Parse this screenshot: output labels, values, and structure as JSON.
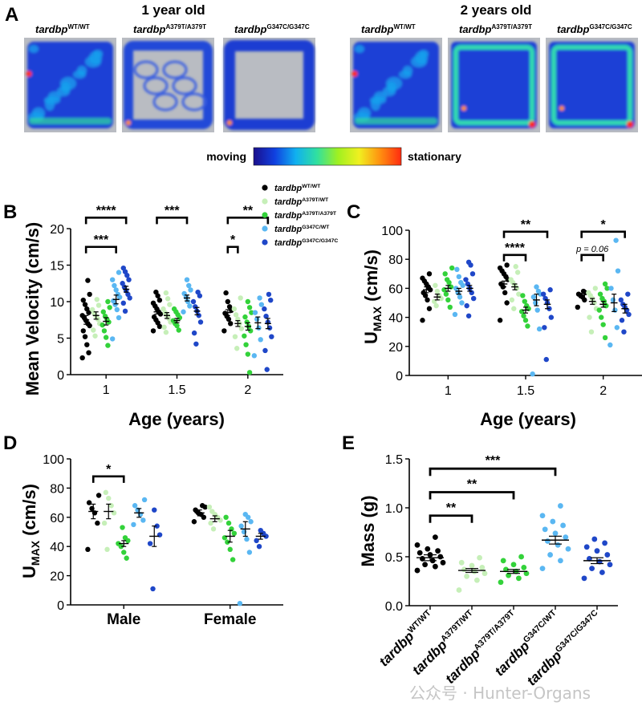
{
  "watermark": "公众号 · Hunter-Organs",
  "panel_A": {
    "panel_label": "A",
    "group_1_title": "1 year old",
    "group_2_title": "2 years old",
    "heatmaps": [
      {
        "genotype_base": "tardbp",
        "genotype_sup": "WT/WT",
        "pattern": "full"
      },
      {
        "genotype_base": "tardbp",
        "genotype_sup": "A379T/A379T",
        "pattern": "sparse"
      },
      {
        "genotype_base": "tardbp",
        "genotype_sup": "G347C/G347C",
        "pattern": "edge"
      },
      {
        "genotype_base": "tardbp",
        "genotype_sup": "WT/WT",
        "pattern": "full"
      },
      {
        "genotype_base": "tardbp",
        "genotype_sup": "A379T/A379T",
        "pattern": "edge-hot"
      },
      {
        "genotype_base": "tardbp",
        "genotype_sup": "G347C/G347C",
        "pattern": "edge-hot"
      }
    ],
    "colorbar": {
      "left_label": "moving",
      "right_label": "stationary",
      "colors": [
        "#1a0f8c",
        "#1040e0",
        "#10b0f0",
        "#30e0a0",
        "#a0f020",
        "#f0f020",
        "#ff9010",
        "#ff2a10"
      ]
    }
  },
  "legend": {
    "entries": [
      {
        "base": "tardbp",
        "sup": "WT/WT",
        "color": "#000000"
      },
      {
        "base": "tardbp",
        "sup": "A379T/WT",
        "color": "#c6efb8"
      },
      {
        "base": "tardbp",
        "sup": "A379T/A379T",
        "color": "#33d23a"
      },
      {
        "base": "tardbp",
        "sup": "G347C/WT",
        "color": "#5ab7f2"
      },
      {
        "base": "tardbp",
        "sup": "G347C/G347C",
        "color": "#1f47c8"
      }
    ]
  },
  "chart_data": [
    {
      "panel": "B",
      "type": "scatter",
      "ylabel": "Mean Velocity (cm/s)",
      "xlabel": "Age (years)",
      "ylim": [
        0,
        20
      ],
      "yticks": [
        0,
        5,
        10,
        15,
        20
      ],
      "categories": [
        "1",
        "1.5",
        "2"
      ],
      "series_colors": [
        "#000000",
        "#c6efb8",
        "#33d23a",
        "#5ab7f2",
        "#1f47c8"
      ],
      "groups": [
        {
          "category": "1",
          "series": [
            {
              "mean": 7.5,
              "sem": 0.6,
              "values": [
                2.3,
                3.0,
                4.1,
                5.2,
                6.0,
                6.7,
                7.0,
                7.4,
                7.8,
                8.1,
                8.5,
                9.0,
                9.6,
                10.2,
                11.0,
                12.9
              ]
            },
            {
              "mean": 8.1,
              "sem": 0.5,
              "values": [
                5.3,
                6.1,
                7.0,
                7.6,
                8.0,
                8.4,
                8.9,
                9.5,
                10.3
              ]
            },
            {
              "mean": 7.3,
              "sem": 0.5,
              "values": [
                4.0,
                5.1,
                6.0,
                6.8,
                7.2,
                7.6,
                8.0,
                8.6,
                9.2,
                10.0
              ]
            },
            {
              "mean": 10.3,
              "sem": 0.6,
              "values": [
                4.9,
                7.8,
                8.9,
                9.6,
                10.1,
                10.6,
                11.0,
                11.6,
                12.2,
                13.0,
                14.0
              ]
            },
            {
              "mean": 11.7,
              "sem": 0.4,
              "values": [
                8.7,
                9.8,
                10.5,
                11.0,
                11.5,
                12.0,
                12.5,
                13.0,
                13.6,
                14.1,
                14.6
              ]
            }
          ]
        },
        {
          "category": "1.5",
          "series": [
            {
              "mean": 8.6,
              "sem": 0.3,
              "values": [
                6.0,
                6.6,
                7.1,
                7.5,
                7.9,
                8.3,
                8.6,
                9.0,
                9.4,
                9.8,
                10.2,
                10.8,
                11.3
              ]
            },
            {
              "mean": 8.1,
              "sem": 0.4,
              "values": [
                5.8,
                6.5,
                7.2,
                7.7,
                8.1,
                8.5,
                9.0,
                9.6,
                10.4,
                11.2
              ]
            },
            {
              "mean": 7.4,
              "sem": 0.3,
              "values": [
                6.1,
                6.7,
                7.0,
                7.4,
                7.8,
                8.2,
                8.6,
                9.0
              ]
            },
            {
              "mean": 10.5,
              "sem": 0.4,
              "values": [
                8.6,
                9.4,
                10.0,
                10.6,
                11.1,
                11.6,
                12.2,
                13.0
              ]
            },
            {
              "mean": 8.7,
              "sem": 0.5,
              "values": [
                4.2,
                5.7,
                7.2,
                8.1,
                8.7,
                9.3,
                10.0,
                10.8,
                11.3
              ]
            }
          ]
        },
        {
          "category": "2",
          "series": [
            {
              "mean": 8.5,
              "sem": 0.4,
              "values": [
                6.0,
                7.0,
                7.6,
                8.0,
                8.4,
                8.8,
                9.3,
                10.0,
                11.2
              ]
            },
            {
              "mean": 7.0,
              "sem": 0.4,
              "values": [
                3.6,
                5.2,
                6.3,
                7.0,
                7.6,
                8.2,
                9.0,
                10.5
              ]
            },
            {
              "mean": 6.6,
              "sem": 0.5,
              "values": [
                0.3,
                2.8,
                4.1,
                5.3,
                6.0,
                6.6,
                7.2,
                7.9,
                8.5,
                9.2,
                10.0
              ]
            },
            {
              "mean": 7.1,
              "sem": 0.8,
              "values": [
                2.6,
                4.8,
                6.4,
                7.6,
                8.5,
                9.6,
                10.5
              ]
            },
            {
              "mean": 7.0,
              "sem": 0.7,
              "values": [
                0.7,
                3.3,
                5.2,
                6.4,
                7.2,
                8.0,
                9.0,
                10.2,
                11.0
              ]
            }
          ]
        }
      ],
      "annotations": [
        {
          "category": "1",
          "from": 0,
          "to": 4,
          "level": 21.5,
          "label": "****"
        },
        {
          "category": "1",
          "from": 0,
          "to": 3,
          "level": 17.5,
          "label": "***"
        },
        {
          "category": "1.5",
          "from": 0,
          "to": 3,
          "level": 21.5,
          "label": "***"
        },
        {
          "category": "2",
          "from": 0,
          "to": 4,
          "level": 21.5,
          "label": "**"
        },
        {
          "category": "2",
          "from": 0,
          "to": 1,
          "level": 17.5,
          "label": "*"
        }
      ]
    },
    {
      "panel": "C",
      "type": "scatter",
      "ylabel_main": "U",
      "ylabel_sub": "MAX",
      "ylabel_rest": " (cm/s)",
      "xlabel": "Age (years)",
      "ylim": [
        0,
        100
      ],
      "yticks": [
        0,
        20,
        40,
        60,
        80,
        100
      ],
      "categories": [
        "1",
        "1.5",
        "2"
      ],
      "series_colors": [
        "#000000",
        "#c6efb8",
        "#33d23a",
        "#5ab7f2",
        "#1f47c8"
      ],
      "groups": [
        {
          "category": "1",
          "series": [
            {
              "mean": 59,
              "sem": 2.0,
              "values": [
                38,
                46,
                52,
                55,
                57,
                59,
                61,
                63,
                65,
                67,
                70
              ]
            },
            {
              "mean": 54,
              "sem": 2.0,
              "values": [
                48,
                51,
                53,
                55,
                58,
                62
              ]
            },
            {
              "mean": 60,
              "sem": 2.0,
              "values": [
                47,
                52,
                56,
                59,
                61,
                64,
                66,
                70,
                74
              ]
            },
            {
              "mean": 58,
              "sem": 2.0,
              "values": [
                42,
                50,
                54,
                57,
                60,
                62,
                64,
                68,
                73
              ]
            },
            {
              "mean": 60,
              "sem": 2.0,
              "values": [
                41,
                48,
                53,
                57,
                60,
                63,
                66,
                70,
                76,
                78
              ]
            }
          ]
        },
        {
          "category": "1.5",
          "series": [
            {
              "mean": 63,
              "sem": 2.0,
              "values": [
                38,
                50,
                57,
                61,
                63,
                66,
                68,
                70,
                72,
                74,
                76
              ]
            },
            {
              "mean": 61,
              "sem": 2.0,
              "values": [
                46,
                52,
                56,
                60,
                62,
                64,
                66,
                71,
                75
              ]
            },
            {
              "mean": 45,
              "sem": 2.0,
              "values": [
                34,
                38,
                41,
                44,
                46,
                48,
                51,
                55
              ]
            },
            {
              "mean": 52,
              "sem": 4.0,
              "values": [
                1,
                32,
                45,
                50,
                54,
                56,
                58,
                61
              ]
            },
            {
              "mean": 49,
              "sem": 3.0,
              "values": [
                11,
                33,
                40,
                46,
                50,
                53,
                56,
                59
              ]
            }
          ]
        },
        {
          "category": "2",
          "series": [
            {
              "mean": 55,
              "sem": 1.5,
              "values": [
                47,
                52,
                54,
                55,
                56,
                57,
                58
              ]
            },
            {
              "mean": 51,
              "sem": 2.0,
              "values": [
                30,
                40,
                46,
                50,
                53,
                55,
                57,
                60
              ]
            },
            {
              "mean": 49,
              "sem": 2.0,
              "values": [
                26,
                35,
                40,
                45,
                48,
                51,
                53,
                56,
                60,
                63
              ]
            },
            {
              "mean": 50,
              "sem": 6.0,
              "values": [
                21,
                33,
                45,
                52,
                60,
                72,
                93
              ]
            },
            {
              "mean": 46,
              "sem": 3.0,
              "values": [
                30,
                38,
                42,
                45,
                47,
                49,
                52,
                56
              ]
            }
          ]
        }
      ],
      "annotations": [
        {
          "category": "1.5",
          "from": 0,
          "to": 4,
          "level": 99,
          "label": "**"
        },
        {
          "category": "1.5",
          "from": 0,
          "to": 2,
          "level": 83,
          "label": "****"
        },
        {
          "category": "2",
          "from": 0,
          "to": 4,
          "level": 99,
          "label": "*"
        },
        {
          "category": "2",
          "from": 0,
          "to": 2,
          "level": 83,
          "label": "p = 0.06"
        }
      ]
    },
    {
      "panel": "D",
      "type": "scatter",
      "ylabel_main": "U",
      "ylabel_sub": "MAX",
      "ylabel_rest": " (cm/s)",
      "ylim": [
        0,
        100
      ],
      "yticks": [
        0,
        20,
        40,
        60,
        80,
        100
      ],
      "categories": [
        "Male",
        "Female"
      ],
      "series_colors": [
        "#000000",
        "#c6efb8",
        "#33d23a",
        "#5ab7f2",
        "#1f47c8"
      ],
      "groups": [
        {
          "category": "Male",
          "series": [
            {
              "mean": 64,
              "sem": 5.0,
              "values": [
                38,
                56,
                63,
                66,
                70,
                75
              ]
            },
            {
              "mean": 64,
              "sem": 5.0,
              "values": [
                38,
                56,
                63,
                68,
                73,
                77
              ]
            },
            {
              "mean": 42,
              "sem": 2.0,
              "values": [
                32,
                36,
                40,
                42,
                44,
                46,
                53
              ]
            },
            {
              "mean": 63,
              "sem": 3.0,
              "values": [
                55,
                58,
                62,
                65,
                68,
                72
              ]
            },
            {
              "mean": 47,
              "sem": 7.0,
              "values": [
                11,
                42,
                48,
                54,
                65
              ]
            }
          ]
        },
        {
          "category": "Female",
          "series": [
            {
              "mean": 63,
              "sem": 2.0,
              "values": [
                57,
                60,
                62,
                63,
                65,
                67,
                68
              ]
            },
            {
              "mean": 59,
              "sem": 2.0,
              "values": [
                52,
                56,
                58,
                60,
                62,
                64,
                67
              ]
            },
            {
              "mean": 47,
              "sem": 4.0,
              "values": [
                31,
                38,
                43,
                46,
                49,
                52,
                56,
                60
              ]
            },
            {
              "mean": 52,
              "sem": 5.0,
              "values": [
                1,
                36,
                45,
                50,
                54,
                57,
                60,
                62
              ]
            },
            {
              "mean": 47,
              "sem": 2.0,
              "values": [
                40,
                44,
                47,
                49,
                51
              ]
            }
          ]
        }
      ],
      "annotations": [
        {
          "category": "Male",
          "from": 0,
          "to": 2,
          "level": 88,
          "label": "*"
        }
      ]
    },
    {
      "panel": "E",
      "type": "scatter",
      "ylabel": "Mass (g)",
      "ylim": [
        0,
        1.5
      ],
      "yticks": [
        "0.0",
        "0.5",
        "1.0",
        "1.5"
      ],
      "categories": [
        {
          "base": "tardbp",
          "sup": "WT/WT"
        },
        {
          "base": "tardbp",
          "sup": "A379T/WT"
        },
        {
          "base": "tardbp",
          "sup": "A379T/A379T"
        },
        {
          "base": "tardbp",
          "sup": "G347C/WT"
        },
        {
          "base": "tardbp",
          "sup": "G347C/G347C"
        }
      ],
      "series_colors": [
        "#000000",
        "#c6efb8",
        "#33d23a",
        "#5ab7f2",
        "#1f47c8"
      ],
      "groups": [
        {
          "mean": 0.49,
          "sem": 0.03,
          "values": [
            0.36,
            0.4,
            0.42,
            0.44,
            0.46,
            0.48,
            0.5,
            0.52,
            0.54,
            0.56,
            0.58,
            0.62,
            0.7
          ]
        },
        {
          "mean": 0.36,
          "sem": 0.02,
          "values": [
            0.16,
            0.26,
            0.3,
            0.33,
            0.35,
            0.37,
            0.39,
            0.41,
            0.44,
            0.49
          ]
        },
        {
          "mean": 0.35,
          "sem": 0.02,
          "values": [
            0.24,
            0.28,
            0.31,
            0.33,
            0.35,
            0.37,
            0.39,
            0.42,
            0.46,
            0.5
          ]
        },
        {
          "mean": 0.67,
          "sem": 0.04,
          "values": [
            0.38,
            0.46,
            0.52,
            0.58,
            0.62,
            0.66,
            0.7,
            0.74,
            0.78,
            0.82,
            0.86,
            0.92,
            1.02
          ]
        },
        {
          "mean": 0.46,
          "sem": 0.03,
          "values": [
            0.28,
            0.34,
            0.38,
            0.42,
            0.45,
            0.48,
            0.52,
            0.56,
            0.6,
            0.64,
            0.68
          ]
        }
      ],
      "annotations": [
        {
          "from": 0,
          "to": 3,
          "level": 1.4,
          "label": "***"
        },
        {
          "from": 0,
          "to": 2,
          "level": 1.16,
          "label": "**"
        },
        {
          "from": 0,
          "to": 1,
          "level": 0.92,
          "label": "**"
        }
      ]
    }
  ]
}
